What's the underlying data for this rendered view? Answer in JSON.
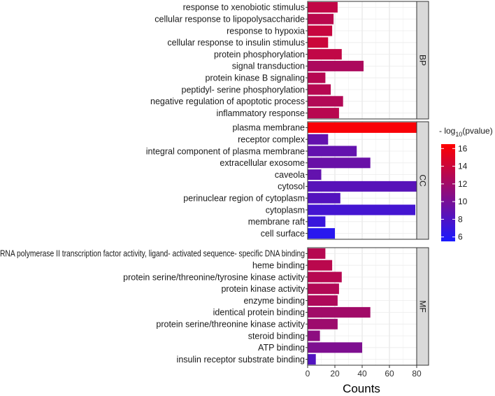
{
  "chart_data": {
    "type": "bar",
    "orientation": "horizontal",
    "xlabel": "Counts",
    "xlim": [
      0,
      80
    ],
    "x_ticks": [
      0,
      20,
      40,
      60,
      80
    ],
    "grid": true,
    "legend": {
      "title_prefix": "- log",
      "title_subscript": "10",
      "title_suffix": "(pvalue)",
      "ticks": [
        6,
        8,
        10,
        12,
        14,
        16
      ],
      "range": [
        5.5,
        16.5
      ],
      "color_low": "#1a1aff",
      "color_high": "#ff0000",
      "placement": "right"
    },
    "panels": [
      {
        "name": "BP",
        "categories": [
          "response to xenobiotic stimulus",
          "cellular response to lipopolysaccharide",
          "response to hypoxia",
          "cellular response to insulin stimulus",
          "protein phosphorylation",
          "signal transduction",
          "protein kinase B signaling",
          "peptidyl- serine phosphorylation",
          "negative regulation of apoptotic process",
          "inflammatory response"
        ],
        "counts": [
          22,
          19,
          18,
          15,
          25,
          41,
          13,
          17,
          26,
          23
        ],
        "neglog10p": [
          13.5,
          13.2,
          13.8,
          14.0,
          13.5,
          12.5,
          13.0,
          13.0,
          12.8,
          13.1
        ]
      },
      {
        "name": "CC",
        "categories": [
          "plasma membrane",
          "receptor complex",
          "integral component of plasma membrane",
          "extracellular exosome",
          "caveola",
          "cytosol",
          "perinuclear region of cytoplasm",
          "cytoplasm",
          "membrane raft",
          "cell surface"
        ],
        "counts": [
          80,
          15,
          36,
          46,
          10,
          80,
          24,
          79,
          13,
          20
        ],
        "neglog10p": [
          16.2,
          9.0,
          9.0,
          9.3,
          9.0,
          8.5,
          8.3,
          7.5,
          7.0,
          6.2
        ]
      },
      {
        "name": "MF",
        "categories": [
          "RNA polymerase II transcription factor activity, ligand- activated sequence- specific DNA binding",
          "heme binding",
          "protein serine/threonine/tyrosine kinase activity",
          "protein kinase activity",
          "enzyme binding",
          "identical protein binding",
          "protein serine/threonine kinase activity",
          "steroid binding",
          "ATP binding",
          "insulin receptor substrate binding"
        ],
        "counts": [
          13,
          18,
          25,
          23,
          22,
          46,
          22,
          9,
          40,
          6
        ],
        "neglog10p": [
          13.0,
          13.2,
          13.0,
          12.8,
          12.6,
          12.0,
          11.8,
          11.0,
          10.3,
          8.2
        ]
      }
    ]
  }
}
